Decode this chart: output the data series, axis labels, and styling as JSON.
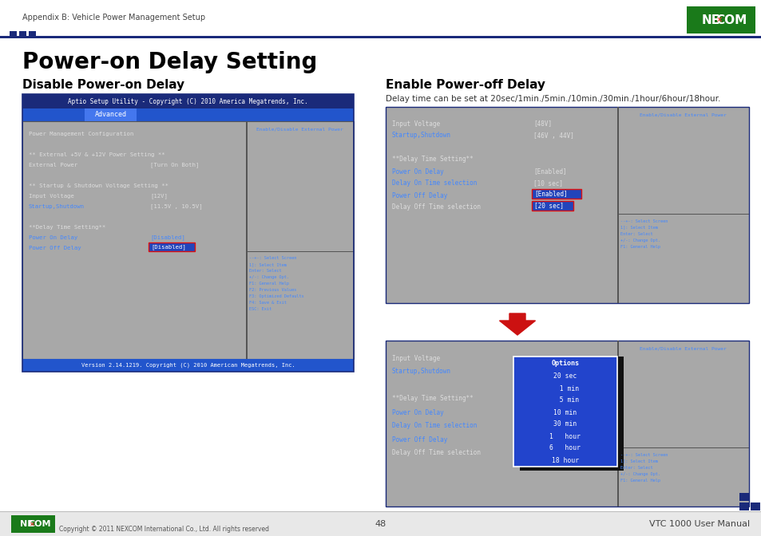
{
  "page_header": "Appendix B: Vehicle Power Management Setup",
  "main_title": "Power-on Delay Setting",
  "section1_title": "Disable Power-on Delay",
  "section2_title": "Enable Power-off Delay",
  "section2_desc": "Delay time can be set at 20sec/1min./5min./10min./30min./1hour/6hour/18hour.",
  "footer_copy": "Copyright © 2011 NEXCOM International Co., Ltd. All rights reserved",
  "footer_center": "48",
  "footer_right": "VTC 1000 User Manual",
  "bios1_title_bar": "Aptio Setup Utility - Copyright (C) 2010 America Megatrends, Inc.",
  "bios1_tab": "Advanced",
  "bios1_version": "Version 2.14.1219. Copyright (C) 2010 American Megatrends, Inc.",
  "bios1_right_top": "Enable/Disable External Power",
  "bios1_help": [
    "--+-: Select Screen",
    "1]: Select Item",
    "Enter: Select",
    "+/-: Change Opt.",
    "F1: General Help",
    "F2: Previous Values",
    "F3: Optimized Defaults",
    "F4: Save & Exit",
    "ESC: Exit"
  ],
  "bios2_right_top": "Enable/Disable External Power",
  "bios2_help": [
    "--+-: Select Screen",
    "1]: Select Item",
    "Enter: Select",
    "+/-: Change Opt.",
    "F1: General Help"
  ],
  "bios3_right_top": "Enable/Disable External Power",
  "bios3_help": [
    "--+-: Select Screen",
    "1]: Select Item",
    "Enter: Select",
    "+/-: Change Opt.",
    "F1: General Help"
  ],
  "options_title": "Options",
  "options_items": [
    "20 sec",
    "  1 min",
    "  5 min",
    "10 min",
    "30 min",
    "1   hour",
    "6   hour",
    "18 hour"
  ],
  "bios_bg": "#a8a8a8",
  "dark_navy": "#1a2a7a",
  "medium_blue": "#2255bb",
  "bright_blue": "#3366dd",
  "tab_blue": "#4477ee",
  "link_blue": "#4488ff",
  "text_white": "#ffffff",
  "text_light": "#dddddd",
  "panel_divider": "#666666",
  "red_border": "#dd1111",
  "sel_bg": "#2244bb",
  "options_bg": "#2244cc",
  "arrow_red": "#cc1111",
  "nexcom_green": "#1a8a2a",
  "nexcom_blue": "#1155aa",
  "footer_bg": "#f0f0f0",
  "footer_line": "#cccccc"
}
